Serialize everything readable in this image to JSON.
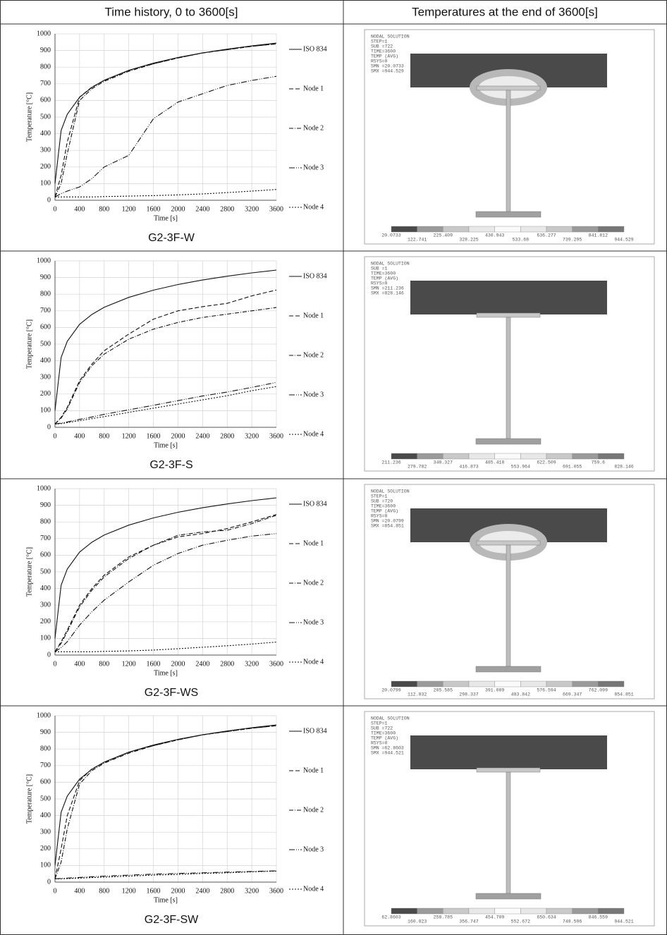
{
  "table": {
    "headers": [
      "Time history, 0 to 3600[s]",
      "Temperatures at the end of 3600[s]"
    ],
    "rows": [
      {
        "caption": "G2-3F-W",
        "contour": {
          "lines": [
            "NODAL SOLUTION",
            "STEP=1",
            "SUB =722",
            "TIME=3600",
            "TEMP (AVG)",
            "RSYS=0",
            "SMN =20.0733",
            "SMX =944.529"
          ],
          "legend_values": [
            20.0733,
            122.741,
            225.409,
            328.225,
            430.943,
            533.68,
            636.277,
            739.295,
            841.812,
            944.529
          ]
        }
      },
      {
        "caption": "G2-3F-S",
        "contour": {
          "lines": [
            "NODAL SOLUTION",
            "SUB =1",
            "TIME=3600",
            "TEMP (AVG)",
            "RSYS=0",
            "SMN =211.236",
            "SMX =828.146"
          ],
          "legend_values": [
            211.236,
            279.782,
            348.327,
            416.873,
            485.418,
            553.964,
            622.509,
            691.055,
            759.6,
            828.146
          ]
        }
      },
      {
        "caption": "G2-3F-WS",
        "contour": {
          "lines": [
            "NODAL SOLUTION",
            "STEP=1",
            "SUB =720",
            "TIME=3600",
            "TEMP (AVG)",
            "RSYS=0",
            "SMN =20.0799",
            "SMX =854.851"
          ],
          "legend_values": [
            20.0799,
            112.832,
            205.585,
            298.337,
            391.089,
            483.842,
            576.594,
            669.347,
            762.099,
            854.851
          ]
        }
      },
      {
        "caption": "G2-3F-SW",
        "contour": {
          "lines": [
            "NODAL SOLUTION",
            "STEP=1",
            "SUB =722",
            "TIME=3600",
            "TEMP (AVG)",
            "RSYS=0",
            "SMN =62.8603",
            "SMX =944.521"
          ],
          "legend_values": [
            62.8603,
            160.823,
            258.785,
            356.747,
            454.709,
            552.672,
            650.634,
            748.596,
            846.559,
            944.521
          ]
        }
      }
    ]
  },
  "chart_data": [
    {
      "type": "line",
      "xlabel": "Time [s]",
      "ylabel": "Temperature [°C]",
      "xlim": [
        0,
        3600
      ],
      "ylim": [
        0,
        1000
      ],
      "xticks": [
        0,
        400,
        800,
        1200,
        1600,
        2000,
        2400,
        2800,
        3200,
        3600
      ],
      "yticks": [
        0,
        100,
        200,
        300,
        400,
        500,
        600,
        700,
        800,
        900,
        1000
      ],
      "grid": true,
      "x": [
        0,
        100,
        200,
        400,
        600,
        800,
        1200,
        1600,
        2000,
        2400,
        2800,
        3200,
        3600
      ],
      "series": [
        {
          "name": "ISO 834",
          "color": "#111",
          "dash": "none",
          "values": [
            100,
            420,
            517,
            619,
            678,
            721,
            781,
            824,
            858,
            885,
            908,
            928,
            945
          ]
        },
        {
          "name": "Node 1",
          "color": "#111",
          "dash": "6 3",
          "values": [
            20,
            150,
            350,
            620,
            680,
            720,
            780,
            820,
            855,
            885,
            905,
            925,
            940
          ]
        },
        {
          "name": "Node 2",
          "color": "#111",
          "dash": "6 2 1 2",
          "values": [
            20,
            100,
            280,
            600,
            670,
            715,
            775,
            820,
            855,
            885,
            905,
            925,
            940
          ]
        },
        {
          "name": "Node 3",
          "color": "#111",
          "dash": "8 2 1 2 1 2",
          "values": [
            20,
            40,
            55,
            80,
            130,
            200,
            270,
            490,
            590,
            640,
            690,
            720,
            745
          ]
        },
        {
          "name": "Node 4",
          "color": "#111",
          "dash": "2 2",
          "values": [
            20,
            20,
            20,
            20,
            20,
            22,
            25,
            28,
            32,
            38,
            46,
            55,
            65
          ]
        }
      ]
    },
    {
      "type": "line",
      "xlabel": "Time [s]",
      "ylabel": "Temperature [°C]",
      "xlim": [
        0,
        3600
      ],
      "ylim": [
        0,
        1000
      ],
      "xticks": [
        0,
        400,
        800,
        1200,
        1600,
        2000,
        2400,
        2800,
        3200,
        3600
      ],
      "yticks": [
        0,
        100,
        200,
        300,
        400,
        500,
        600,
        700,
        800,
        900,
        1000
      ],
      "grid": true,
      "x": [
        0,
        100,
        200,
        400,
        600,
        800,
        1200,
        1600,
        2000,
        2400,
        2800,
        3200,
        3600
      ],
      "series": [
        {
          "name": "ISO 834",
          "color": "#111",
          "dash": "none",
          "values": [
            100,
            420,
            517,
            619,
            678,
            721,
            781,
            824,
            858,
            885,
            908,
            928,
            945
          ]
        },
        {
          "name": "Node 1",
          "color": "#111",
          "dash": "6 3",
          "values": [
            20,
            60,
            120,
            280,
            380,
            460,
            560,
            650,
            700,
            725,
            745,
            790,
            825
          ]
        },
        {
          "name": "Node 2",
          "color": "#111",
          "dash": "6 2 1 2",
          "values": [
            20,
            55,
            110,
            270,
            370,
            440,
            530,
            590,
            630,
            660,
            680,
            700,
            720
          ]
        },
        {
          "name": "Node 3",
          "color": "#111",
          "dash": "8 2 1 2 1 2",
          "values": [
            20,
            25,
            32,
            48,
            62,
            78,
            105,
            132,
            160,
            188,
            212,
            240,
            270
          ]
        },
        {
          "name": "Node 4",
          "color": "#111",
          "dash": "2 2",
          "values": [
            20,
            22,
            28,
            40,
            52,
            64,
            90,
            115,
            140,
            165,
            190,
            220,
            245
          ]
        }
      ]
    },
    {
      "type": "line",
      "xlabel": "Time [s]",
      "ylabel": "Temperature [°C]",
      "xlim": [
        0,
        3600
      ],
      "ylim": [
        0,
        1000
      ],
      "xticks": [
        0,
        400,
        800,
        1200,
        1600,
        2000,
        2400,
        2800,
        3200,
        3600
      ],
      "yticks": [
        0,
        100,
        200,
        300,
        400,
        500,
        600,
        700,
        800,
        900,
        1000
      ],
      "grid": true,
      "x": [
        0,
        100,
        200,
        400,
        600,
        800,
        1200,
        1600,
        2000,
        2400,
        2800,
        3200,
        3600
      ],
      "series": [
        {
          "name": "ISO 834",
          "color": "#111",
          "dash": "none",
          "values": [
            100,
            420,
            517,
            619,
            678,
            721,
            781,
            824,
            858,
            885,
            908,
            928,
            945
          ]
        },
        {
          "name": "Node 1",
          "color": "#111",
          "dash": "6 3",
          "values": [
            20,
            80,
            150,
            300,
            400,
            480,
            590,
            660,
            710,
            730,
            760,
            800,
            845
          ]
        },
        {
          "name": "Node 2",
          "color": "#111",
          "dash": "6 2 1 2",
          "values": [
            20,
            70,
            140,
            290,
            390,
            470,
            580,
            660,
            720,
            740,
            750,
            790,
            840
          ]
        },
        {
          "name": "Node 3",
          "color": "#111",
          "dash": "8 2 1 2 1 2",
          "values": [
            20,
            45,
            80,
            180,
            260,
            330,
            440,
            540,
            610,
            660,
            690,
            715,
            730
          ]
        },
        {
          "name": "Node 4",
          "color": "#111",
          "dash": "2 2",
          "values": [
            20,
            20,
            20,
            20,
            20,
            22,
            25,
            30,
            38,
            47,
            56,
            66,
            78
          ]
        }
      ]
    },
    {
      "type": "line",
      "xlabel": "Time [s]",
      "ylabel": "Temperature [°C]",
      "xlim": [
        0,
        3600
      ],
      "ylim": [
        0,
        1000
      ],
      "xticks": [
        0,
        400,
        800,
        1200,
        1600,
        2000,
        2400,
        2800,
        3200,
        3600
      ],
      "yticks": [
        0,
        100,
        200,
        300,
        400,
        500,
        600,
        700,
        800,
        900,
        1000
      ],
      "grid": true,
      "x": [
        0,
        100,
        200,
        400,
        600,
        800,
        1200,
        1600,
        2000,
        2400,
        2800,
        3200,
        3600
      ],
      "series": [
        {
          "name": "ISO 834",
          "color": "#111",
          "dash": "none",
          "values": [
            100,
            420,
            517,
            619,
            678,
            721,
            781,
            824,
            858,
            885,
            908,
            928,
            945
          ]
        },
        {
          "name": "Node 1",
          "color": "#111",
          "dash": "6 3",
          "values": [
            20,
            200,
            400,
            610,
            680,
            720,
            780,
            820,
            855,
            885,
            905,
            925,
            940
          ]
        },
        {
          "name": "Node 2",
          "color": "#111",
          "dash": "6 2 1 2",
          "values": [
            20,
            120,
            320,
            590,
            670,
            715,
            775,
            820,
            855,
            885,
            905,
            925,
            940
          ]
        },
        {
          "name": "Node 3",
          "color": "#111",
          "dash": "8 2 1 2 1 2",
          "values": [
            20,
            22,
            24,
            28,
            32,
            36,
            42,
            48,
            52,
            56,
            60,
            64,
            68
          ]
        },
        {
          "name": "Node 4",
          "color": "#111",
          "dash": "2 2",
          "values": [
            20,
            20,
            21,
            24,
            27,
            30,
            36,
            42,
            46,
            52,
            56,
            62,
            66
          ]
        }
      ]
    }
  ]
}
